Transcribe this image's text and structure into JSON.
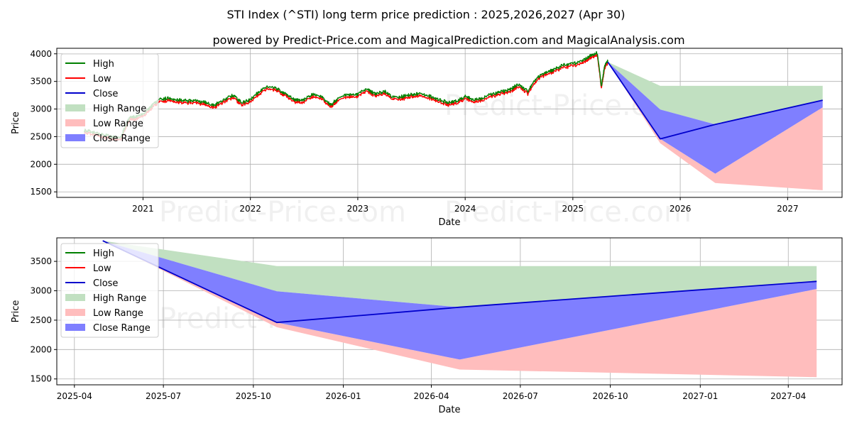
{
  "title": "STI Index (^STI) long term price prediction : 2025,2026,2027 (Apr 30)",
  "subtitle": "powered by Predict-Price.com and MagicalPrediction.com and MagicalAnalysis.com",
  "watermark": "Predict-Price.com",
  "colors": {
    "high": "#008000",
    "low": "#ff0000",
    "close": "#0000cc",
    "high_range": "#c1e0c1",
    "low_range": "#ffbdbd",
    "close_range": "#7f7fff"
  },
  "chart_data": [
    {
      "type": "line",
      "name": "history-and-forecast",
      "xlabel": "Date",
      "ylabel": "Price",
      "xlim": [
        "2020-03-14",
        "2027-07-05"
      ],
      "ylim": [
        1400,
        4100
      ],
      "yticks": [
        1500,
        2000,
        2500,
        3000,
        3500,
        4000
      ],
      "xticks": [
        {
          "date": "2021-01-01",
          "label": "2021"
        },
        {
          "date": "2022-01-01",
          "label": "2022"
        },
        {
          "date": "2023-01-01",
          "label": "2023"
        },
        {
          "date": "2024-01-01",
          "label": "2024"
        },
        {
          "date": "2025-01-01",
          "label": "2025"
        },
        {
          "date": "2026-01-01",
          "label": "2026"
        },
        {
          "date": "2027-01-01",
          "label": "2027"
        }
      ],
      "grid": true,
      "legend_position": "top-left",
      "legend": [
        "High",
        "Low",
        "Close",
        "High Range",
        "Low Range",
        "Close Range"
      ],
      "history_close": [
        [
          "2020-06-15",
          2600
        ],
        [
          "2020-07-15",
          2560
        ],
        [
          "2020-08-15",
          2520
        ],
        [
          "2020-09-15",
          2480
        ],
        [
          "2020-10-15",
          2450
        ],
        [
          "2020-11-01",
          2650
        ],
        [
          "2020-11-15",
          2820
        ],
        [
          "2020-12-01",
          2840
        ],
        [
          "2020-12-15",
          2850
        ],
        [
          "2021-01-15",
          2950
        ],
        [
          "2021-02-01",
          3050
        ],
        [
          "2021-03-01",
          3150
        ],
        [
          "2021-04-01",
          3180
        ],
        [
          "2021-05-01",
          3150
        ],
        [
          "2021-06-01",
          3130
        ],
        [
          "2021-07-01",
          3130
        ],
        [
          "2021-08-01",
          3100
        ],
        [
          "2021-09-01",
          3050
        ],
        [
          "2021-10-01",
          3150
        ],
        [
          "2021-11-01",
          3230
        ],
        [
          "2021-12-01",
          3100
        ],
        [
          "2022-01-01",
          3150
        ],
        [
          "2022-02-01",
          3300
        ],
        [
          "2022-03-01",
          3400
        ],
        [
          "2022-04-01",
          3350
        ],
        [
          "2022-05-01",
          3250
        ],
        [
          "2022-06-01",
          3150
        ],
        [
          "2022-07-01",
          3150
        ],
        [
          "2022-08-01",
          3250
        ],
        [
          "2022-09-01",
          3200
        ],
        [
          "2022-10-01",
          3050
        ],
        [
          "2022-11-01",
          3200
        ],
        [
          "2022-12-01",
          3250
        ],
        [
          "2023-01-01",
          3250
        ],
        [
          "2023-02-01",
          3350
        ],
        [
          "2023-03-01",
          3250
        ],
        [
          "2023-04-01",
          3300
        ],
        [
          "2023-05-01",
          3200
        ],
        [
          "2023-06-01",
          3200
        ],
        [
          "2023-07-01",
          3250
        ],
        [
          "2023-08-01",
          3250
        ],
        [
          "2023-09-01",
          3220
        ],
        [
          "2023-10-01",
          3150
        ],
        [
          "2023-11-01",
          3100
        ],
        [
          "2023-12-01",
          3120
        ],
        [
          "2024-01-01",
          3200
        ],
        [
          "2024-02-01",
          3150
        ],
        [
          "2024-03-01",
          3180
        ],
        [
          "2024-04-01",
          3250
        ],
        [
          "2024-05-01",
          3300
        ],
        [
          "2024-06-01",
          3330
        ],
        [
          "2024-07-01",
          3430
        ],
        [
          "2024-08-01",
          3300
        ],
        [
          "2024-09-01",
          3550
        ],
        [
          "2024-10-01",
          3650
        ],
        [
          "2024-11-01",
          3700
        ],
        [
          "2024-12-01",
          3780
        ],
        [
          "2025-01-01",
          3800
        ],
        [
          "2025-02-01",
          3850
        ],
        [
          "2025-03-01",
          3950
        ],
        [
          "2025-03-25",
          3990
        ],
        [
          "2025-04-08",
          3400
        ],
        [
          "2025-04-20",
          3780
        ],
        [
          "2025-04-30",
          3850
        ]
      ],
      "forecast": {
        "dates": [
          "2025-04-30",
          "2025-10-25",
          "2026-04-30",
          "2027-04-30"
        ],
        "close": [
          3850,
          2460,
          2720,
          3160
        ],
        "high_range": {
          "upper": [
            3850,
            3420,
            3420,
            3420
          ],
          "lower": [
            3850,
            2990,
            2720,
            3160
          ]
        },
        "low_range": {
          "upper": [
            3850,
            2460,
            1830,
            3030
          ],
          "lower": [
            3850,
            2380,
            1660,
            1530
          ]
        },
        "close_range": {
          "upper": [
            3850,
            2990,
            2720,
            3160
          ],
          "lower": [
            3850,
            2460,
            1830,
            3030
          ]
        }
      }
    },
    {
      "type": "line",
      "name": "forecast-zoom",
      "xlabel": "Date",
      "ylabel": "Price",
      "xlim": [
        "2025-03-14",
        "2027-05-26"
      ],
      "ylim": [
        1400,
        3900
      ],
      "yticks": [
        1500,
        2000,
        2500,
        3000,
        3500
      ],
      "xticks": [
        {
          "date": "2025-04-01",
          "label": "2025-04"
        },
        {
          "date": "2025-07-01",
          "label": "2025-07"
        },
        {
          "date": "2025-10-01",
          "label": "2025-10"
        },
        {
          "date": "2026-01-01",
          "label": "2026-01"
        },
        {
          "date": "2026-04-01",
          "label": "2026-04"
        },
        {
          "date": "2026-07-01",
          "label": "2026-07"
        },
        {
          "date": "2026-10-01",
          "label": "2026-10"
        },
        {
          "date": "2027-01-01",
          "label": "2027-01"
        },
        {
          "date": "2027-04-01",
          "label": "2027-04"
        }
      ],
      "grid": true,
      "legend_position": "top-left",
      "legend": [
        "High",
        "Low",
        "Close",
        "High Range",
        "Low Range",
        "Close Range"
      ]
    }
  ]
}
